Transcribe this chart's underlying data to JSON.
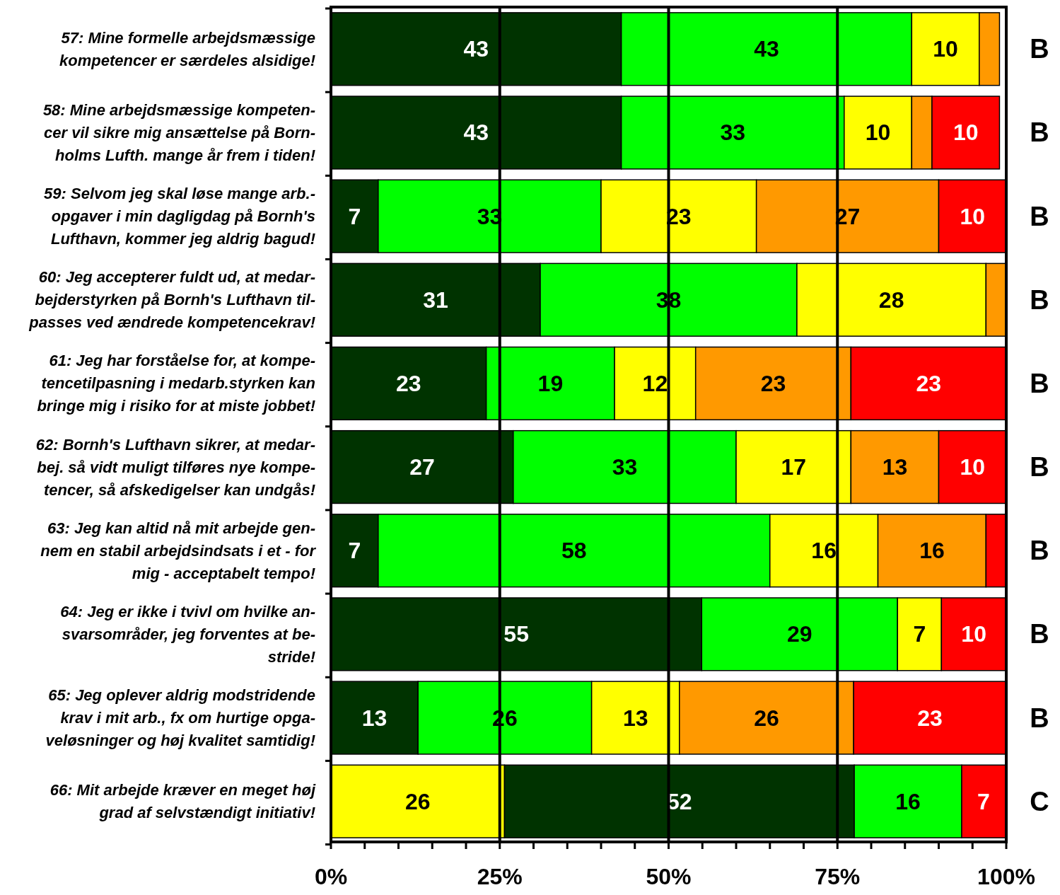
{
  "chart_data": {
    "type": "bar",
    "orientation": "horizontal",
    "stacked": true,
    "categories": [
      "57: Mine formelle arbejdsmæssige\nkompetencer er særdeles alsidige!",
      "58: Mine arbejdsmæssige kompeten-\ncer vil sikre mig ansættelse på Born-\nholms Lufth. mange år frem i tiden!",
      "59: Selvom jeg skal løse mange arb.-\nopgaver i min dagligdag på Bornh's\nLufthavn, kommer jeg aldrig bagud!",
      "60: Jeg accepterer fuldt ud, at medar-\nbejderstyrken på Bornh's Lufthavn til-\npasses ved ændrede kompetencekrav!",
      "61: Jeg har forståelse for, at kompe-\ntencetilpasning i medarb.styrken kan\nbringe mig i risiko for at miste jobbet!",
      "62: Bornh's Lufthavn sikrer, at medar-\nbej. så vidt muligt tilføres nye kompe-\ntencer, så afskedigelser kan undgås!",
      "63: Jeg kan altid nå mit arbejde gen-\nnem en stabil arbejdsindsats i et - for\nmig - acceptabelt tempo!",
      "64: Jeg er ikke i tvivl om hvilke an-\nsvarsområder, jeg forventes at be-\nstride!",
      "65: Jeg oplever aldrig modstridende\nkrav i mit arb., fx om hurtige opga-\nveløsninger og høj kvalitet samtidig!",
      "66: Mit arbejde kræver en meget høj\ngrad af selvstændigt initiativ!"
    ],
    "series": [
      {
        "color": "#ffff00",
        "values": [
          null,
          null,
          null,
          null,
          null,
          null,
          null,
          null,
          null,
          25.7
        ],
        "value_labels": [
          null,
          null,
          null,
          null,
          null,
          null,
          null,
          null,
          null,
          "26"
        ]
      },
      {
        "color": "#003300",
        "values": [
          43,
          43,
          7,
          31,
          23,
          27,
          7,
          54.9,
          12.9,
          51.8
        ],
        "value_labels": [
          "43",
          "43",
          "7",
          "31",
          "23",
          "27",
          "7",
          "55",
          "13",
          "52"
        ]
      },
      {
        "color": "#00ff00",
        "values": [
          43,
          33,
          33,
          38,
          19,
          33,
          58,
          29,
          25.7,
          15.9
        ],
        "value_labels": [
          "43",
          "33",
          "33",
          "38",
          "19",
          "33",
          "58",
          "29",
          "26",
          "16"
        ]
      },
      {
        "color": "#ffff00",
        "values": [
          10,
          10,
          23,
          28,
          12,
          17,
          16,
          6.5,
          13,
          null
        ],
        "value_labels": [
          "10",
          "10",
          "23",
          "28",
          "12",
          "17",
          "16",
          "7",
          "13",
          null
        ]
      },
      {
        "color": "#ff9900",
        "values": [
          3,
          3,
          27,
          3,
          23,
          13,
          16,
          null,
          25.8,
          null
        ],
        "value_labels": [
          null,
          null,
          "27",
          null,
          "23",
          "13",
          "16",
          null,
          "26",
          null
        ]
      },
      {
        "color": "#ff0000",
        "values": [
          null,
          10,
          10,
          null,
          23,
          10,
          3,
          9.6,
          22.6,
          6.5
        ],
        "value_labels": [
          null,
          "10",
          "10",
          null,
          "23",
          "10",
          null,
          "10",
          "23",
          "7"
        ]
      }
    ],
    "xlim": [
      0,
      100
    ],
    "xticks": [
      {
        "value": 0,
        "label": "0%"
      },
      {
        "value": 5,
        "label": null
      },
      {
        "value": 10,
        "label": null
      },
      {
        "value": 15,
        "label": null
      },
      {
        "value": 20,
        "label": null
      },
      {
        "value": 25,
        "label": "25%"
      },
      {
        "value": 30,
        "label": null
      },
      {
        "value": 35,
        "label": null
      },
      {
        "value": 40,
        "label": null
      },
      {
        "value": 45,
        "label": null
      },
      {
        "value": 50,
        "label": "50%"
      },
      {
        "value": 55,
        "label": null
      },
      {
        "value": 60,
        "label": null
      },
      {
        "value": 65,
        "label": null
      },
      {
        "value": 70,
        "label": null
      },
      {
        "value": 75,
        "label": "75%"
      },
      {
        "value": 80,
        "label": null
      },
      {
        "value": 85,
        "label": null
      },
      {
        "value": 90,
        "label": null
      },
      {
        "value": 95,
        "label": null
      },
      {
        "value": 100,
        "label": "100%"
      }
    ],
    "ref_lines": [
      {
        "axis": "x",
        "value": 25,
        "color": "#000000"
      },
      {
        "axis": "x",
        "value": 50,
        "color": "#000000"
      },
      {
        "axis": "x",
        "value": 75,
        "color": "#000000"
      }
    ],
    "annotations": [
      "B",
      "B",
      "B",
      "B",
      "B",
      "B",
      "B",
      "B",
      "B",
      "C"
    ]
  }
}
